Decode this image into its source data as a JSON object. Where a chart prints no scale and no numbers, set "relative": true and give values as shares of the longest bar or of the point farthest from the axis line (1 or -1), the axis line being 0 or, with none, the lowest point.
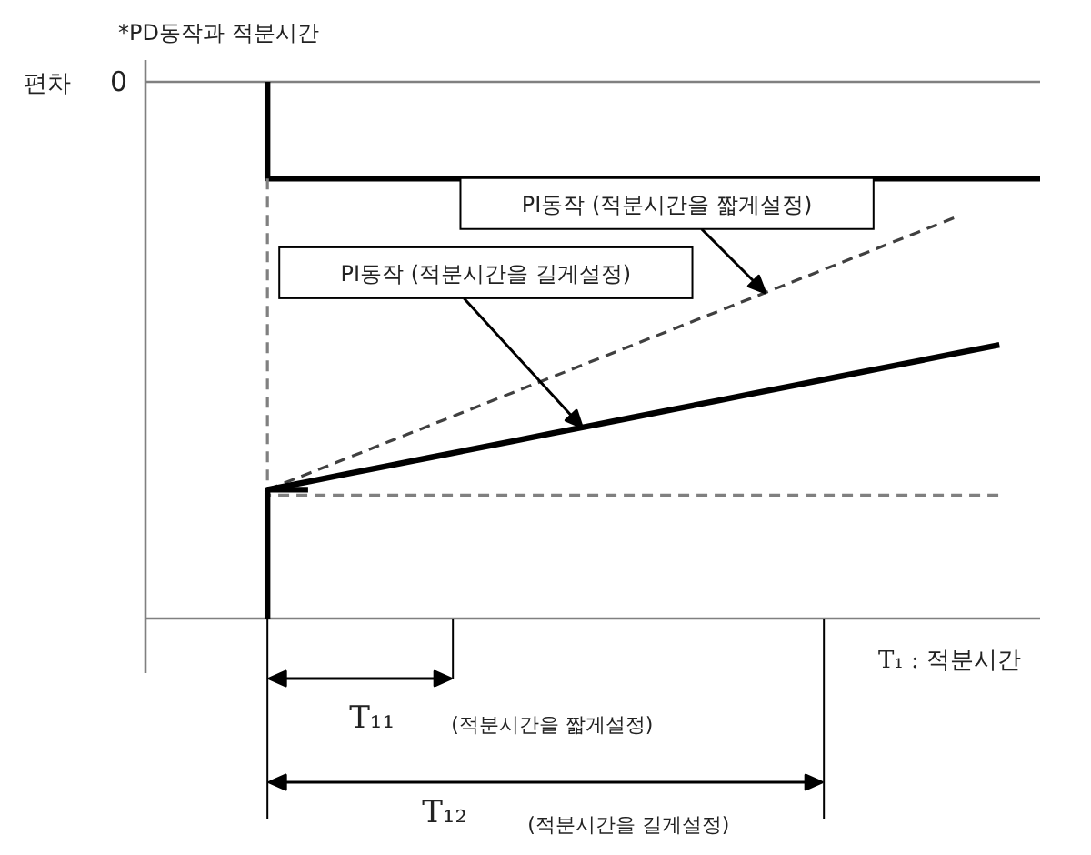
{
  "chart_data": {
    "type": "line",
    "title": "*PD동작과 적분시간",
    "ylabel": "편차",
    "relative": true,
    "categories": [
      null,
      null,
      null,
      null,
      null,
      null,
      null,
      null,
      null,
      null,
      null,
      null,
      null,
      null,
      null,
      null,
      null,
      null,
      null,
      null,
      null,
      null,
      null
    ],
    "series": [
      {
        "name": "0",
        "color": "#808080",
        "line_style": "solid",
        "values": [
          1,
          1,
          1,
          1,
          1,
          1,
          1,
          1,
          1,
          1,
          1,
          1,
          1,
          1,
          1,
          1,
          1,
          1,
          1,
          1,
          1,
          1,
          1
        ]
      },
      {
        "type": "step",
        "color": "#000000",
        "line_style": "solid",
        "values": [
          null,
          null,
          null,
          1,
          0.82,
          0.82,
          0.82,
          0.82,
          0.82,
          0.82,
          0.82,
          0.82,
          0.82,
          0.82,
          0.82,
          0.82,
          0.82,
          0.82,
          0.82,
          0.82,
          0.82,
          0.82,
          0.82
        ]
      },
      {
        "type": "step",
        "color": "#808080",
        "line_style": "dashed",
        "values": [
          null,
          null,
          null,
          0.82,
          0.23,
          0.23,
          0.23,
          0.23,
          0.23,
          0.23,
          0.23,
          0.23,
          0.23,
          0.23,
          0.23,
          0.23,
          0.23,
          0.23,
          0.23,
          0.23,
          0.23,
          0.23,
          null
        ]
      },
      {
        "name": "PI동작 (적분시간을 짧게설정)",
        "color": "#404040",
        "line_style": "dashed",
        "values": [
          null,
          null,
          null,
          0.24,
          0.27,
          0.3,
          0.33,
          0.36,
          0.39,
          0.42,
          0.45,
          0.48,
          0.51,
          0.54,
          0.57,
          0.6,
          0.63,
          0.66,
          0.69,
          0.72,
          0.75,
          null,
          null
        ]
      },
      {
        "name": "PI동작 (적분시간을 길게설정)",
        "color": "#000000",
        "line_style": "solid",
        "values": [
          null,
          null,
          null,
          0.24,
          0.255,
          0.27,
          0.285,
          0.3,
          0.315,
          0.33,
          0.345,
          0.36,
          0.375,
          0.39,
          0.405,
          0.42,
          0.435,
          0.45,
          0.465,
          0.48,
          0.495,
          0.51,
          null
        ]
      },
      {
        "type": "step",
        "color": "#000000",
        "line_style": "solid",
        "values": [
          null,
          null,
          null,
          0,
          0.24,
          null,
          null,
          null,
          null,
          null,
          null,
          null,
          null,
          null,
          null,
          null,
          null,
          null,
          null,
          null,
          null,
          null,
          null
        ]
      }
    ],
    "annotations": [
      "T₁₁",
      "(적분시간을 짧게설정)",
      "T₁₂",
      "(적분시간을 길게설정)",
      "T₁ :  적분시간"
    ]
  }
}
